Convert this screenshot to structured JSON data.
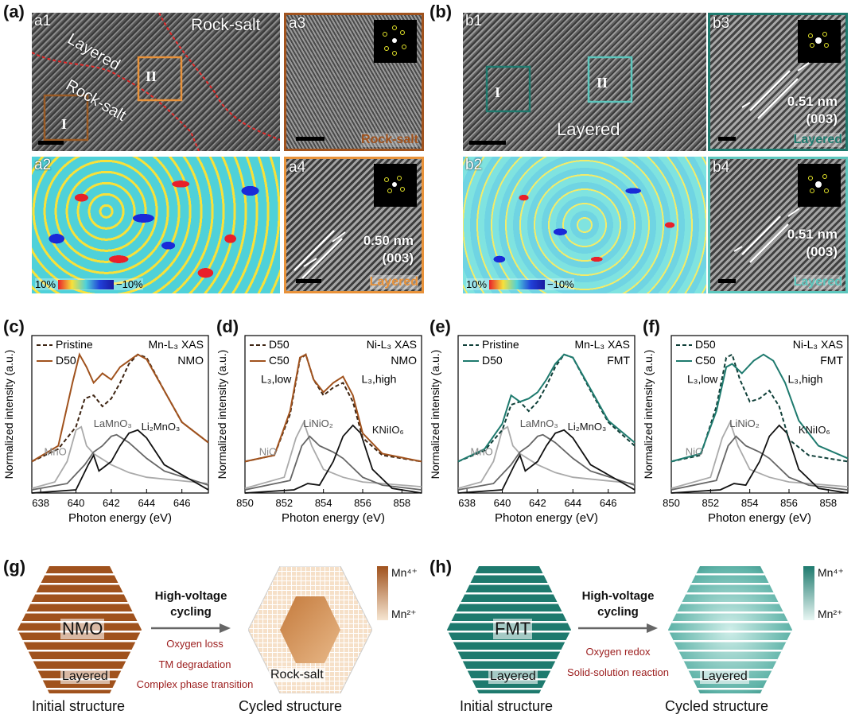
{
  "panels": {
    "a": {
      "label": "(a)"
    },
    "b": {
      "label": "(b)"
    },
    "c": {
      "label": "(c)"
    },
    "d": {
      "label": "(d)"
    },
    "e": {
      "label": "(e)"
    },
    "f": {
      "label": "(f)"
    },
    "g": {
      "label": "(g)"
    },
    "h": {
      "label": "(h)"
    }
  },
  "tem": {
    "a1": {
      "label": "a1",
      "layered": "Layered",
      "rocksalt_top": "Rock-salt",
      "rocksalt_mid": "Rock-salt",
      "roi1": "I",
      "roi2": "II"
    },
    "a2": {
      "label": "a2",
      "cbar_left": "10%",
      "cbar_right": "−10%"
    },
    "a3": {
      "label": "a3",
      "phase": "Rock-salt",
      "phase_color": "#a0521d"
    },
    "a4": {
      "label": "a4",
      "dspace": "0.50 nm",
      "plane": "(003)",
      "phase": "Layered",
      "phase_color": "#e8923a"
    },
    "b1": {
      "label": "b1",
      "layered": "Layered",
      "roi1": "I",
      "roi2": "II"
    },
    "b2": {
      "label": "b2",
      "cbar_left": "10%",
      "cbar_right": "−10%"
    },
    "b3": {
      "label": "b3",
      "dspace": "0.51 nm",
      "plane": "(003)",
      "phase": "Layered",
      "phase_color": "#1e7a6e"
    },
    "b4": {
      "label": "b4",
      "dspace": "0.51 nm",
      "plane": "(003)",
      "phase": "Layered",
      "phase_color": "#5cc6bd"
    }
  },
  "chart_data": [
    {
      "type": "line",
      "id": "c",
      "xlabel": "Photon energy (eV)",
      "ylabel": "Normalized intensity (a.u.)",
      "xlim": [
        637.5,
        647.5
      ],
      "xticks": [
        638,
        640,
        642,
        644,
        646
      ],
      "annotation_lines": [
        "Mn-L₃ XAS",
        "NMO"
      ],
      "series": [
        {
          "name": "Pristine",
          "color": "#3d2412",
          "dash": true,
          "x": [
            637.5,
            639,
            640,
            640.5,
            641,
            641.5,
            642,
            642.5,
            643,
            643.5,
            644,
            645,
            646,
            647.5
          ],
          "y": [
            0.2,
            0.28,
            0.42,
            0.6,
            0.62,
            0.55,
            0.6,
            0.7,
            0.82,
            0.88,
            0.86,
            0.65,
            0.45,
            0.32
          ]
        },
        {
          "name": "D50",
          "color": "#a0521d",
          "dash": false,
          "x": [
            637.5,
            639,
            639.8,
            640.2,
            640.6,
            641,
            641.5,
            642,
            642.5,
            643,
            643.5,
            644,
            645,
            646,
            647.5
          ],
          "y": [
            0.2,
            0.3,
            0.7,
            0.88,
            0.8,
            0.7,
            0.76,
            0.72,
            0.8,
            0.84,
            0.88,
            0.85,
            0.65,
            0.45,
            0.32
          ]
        }
      ],
      "references": [
        {
          "name": "MnO",
          "color": "#aaaaaa",
          "x": [
            637.5,
            638.8,
            639.5,
            640,
            640.3,
            640.6,
            641,
            642,
            643,
            644,
            647.5
          ],
          "y": [
            0.03,
            0.07,
            0.2,
            0.4,
            0.42,
            0.3,
            0.25,
            0.18,
            0.13,
            0.1,
            0.06
          ]
        },
        {
          "name": "LaMnO₃",
          "color": "#666666",
          "x": [
            637.5,
            639.5,
            640.5,
            641,
            641.5,
            642,
            642.3,
            643,
            644,
            645,
            647.5
          ],
          "y": [
            0.02,
            0.06,
            0.18,
            0.26,
            0.3,
            0.36,
            0.37,
            0.32,
            0.22,
            0.14,
            0.05
          ]
        },
        {
          "name": "Li₂MnO₃",
          "color": "#111111",
          "x": [
            637.5,
            640,
            640.7,
            641,
            641.3,
            642,
            642.5,
            643,
            643.5,
            644,
            645,
            647.5
          ],
          "y": [
            0.0,
            0.02,
            0.18,
            0.24,
            0.14,
            0.2,
            0.3,
            0.38,
            0.4,
            0.35,
            0.18,
            0.02
          ]
        }
      ]
    },
    {
      "type": "line",
      "id": "d",
      "xlabel": "Photon energy (eV)",
      "ylabel": "Normalized intensity (a.u.)",
      "xlim": [
        850,
        859
      ],
      "xticks": [
        850,
        852,
        854,
        856,
        858
      ],
      "annotation_lines": [
        "Ni-L₃ XAS",
        "NMO"
      ],
      "series": [
        {
          "name": "D50",
          "color": "#3d2412",
          "dash": true,
          "x": [
            850,
            851.5,
            852.3,
            852.8,
            853.1,
            853.5,
            854,
            854.5,
            855,
            855.5,
            856,
            857,
            859
          ],
          "y": [
            0.2,
            0.24,
            0.5,
            0.85,
            0.88,
            0.72,
            0.62,
            0.67,
            0.7,
            0.58,
            0.35,
            0.24,
            0.2
          ]
        },
        {
          "name": "C50",
          "color": "#a0521d",
          "dash": false,
          "x": [
            850,
            851.5,
            852.3,
            852.8,
            853.1,
            853.5,
            854,
            854.5,
            855,
            855.5,
            856,
            857,
            859
          ],
          "y": [
            0.2,
            0.24,
            0.52,
            0.86,
            0.88,
            0.72,
            0.64,
            0.7,
            0.74,
            0.62,
            0.38,
            0.25,
            0.2
          ]
        }
      ],
      "references": [
        {
          "name": "NiO",
          "color": "#aaaaaa",
          "x": [
            850,
            852,
            852.6,
            853,
            853.4,
            854,
            855,
            856,
            859
          ],
          "y": [
            0.03,
            0.1,
            0.35,
            0.45,
            0.3,
            0.15,
            0.1,
            0.07,
            0.04
          ]
        },
        {
          "name": "LiNiO₂",
          "color": "#666666",
          "x": [
            850,
            852.3,
            852.9,
            853.3,
            853.8,
            854.5,
            855,
            856,
            857,
            859
          ],
          "y": [
            0.02,
            0.08,
            0.3,
            0.36,
            0.3,
            0.26,
            0.22,
            0.1,
            0.05,
            0.02
          ]
        },
        {
          "name": "KNiIO₆",
          "color": "#111111",
          "x": [
            850,
            852.5,
            853.2,
            853.8,
            854.5,
            855,
            855.5,
            855.9,
            856.5,
            857.5,
            859
          ],
          "y": [
            0.0,
            0.02,
            0.06,
            0.05,
            0.2,
            0.36,
            0.43,
            0.38,
            0.15,
            0.03,
            0.0
          ]
        }
      ],
      "edge_labels": [
        "L₃,low",
        "L₃,high"
      ]
    },
    {
      "type": "line",
      "id": "e",
      "xlabel": "Photon energy (eV)",
      "ylabel": "Normalized intensity (a.u.)",
      "xlim": [
        637.5,
        647.5
      ],
      "xticks": [
        638,
        640,
        642,
        644,
        646
      ],
      "annotation_lines": [
        "Mn-L₃ XAS",
        "FMT"
      ],
      "series": [
        {
          "name": "Pristine",
          "color": "#0f3f38",
          "dash": true,
          "x": [
            637.5,
            639,
            640,
            640.5,
            641,
            641.5,
            642,
            642.5,
            643,
            643.5,
            644,
            645,
            646,
            647.5
          ],
          "y": [
            0.2,
            0.27,
            0.4,
            0.56,
            0.58,
            0.52,
            0.58,
            0.68,
            0.8,
            0.88,
            0.86,
            0.65,
            0.45,
            0.3
          ]
        },
        {
          "name": "D50",
          "color": "#1e7a6e",
          "dash": false,
          "x": [
            637.5,
            639,
            640,
            640.5,
            641,
            641.5,
            642,
            642.5,
            643,
            643.5,
            644,
            645,
            646,
            647.5
          ],
          "y": [
            0.2,
            0.28,
            0.44,
            0.62,
            0.58,
            0.6,
            0.64,
            0.72,
            0.82,
            0.88,
            0.86,
            0.66,
            0.46,
            0.32
          ]
        }
      ],
      "references": [
        {
          "name": "MnO",
          "color": "#aaaaaa",
          "x": [
            637.5,
            638.8,
            639.5,
            640,
            640.3,
            640.6,
            641,
            642,
            643,
            644,
            647.5
          ],
          "y": [
            0.03,
            0.07,
            0.2,
            0.4,
            0.42,
            0.3,
            0.25,
            0.18,
            0.13,
            0.1,
            0.06
          ]
        },
        {
          "name": "LaMnO₃",
          "color": "#666666",
          "x": [
            637.5,
            639.5,
            640.5,
            641,
            641.5,
            642,
            642.3,
            643,
            644,
            645,
            647.5
          ],
          "y": [
            0.02,
            0.06,
            0.18,
            0.26,
            0.3,
            0.36,
            0.37,
            0.32,
            0.22,
            0.14,
            0.05
          ]
        },
        {
          "name": "Li₂MnO₃",
          "color": "#111111",
          "x": [
            637.5,
            640,
            640.7,
            641,
            641.3,
            642,
            642.5,
            643,
            643.5,
            644,
            645,
            647.5
          ],
          "y": [
            0.0,
            0.02,
            0.18,
            0.24,
            0.14,
            0.2,
            0.3,
            0.38,
            0.4,
            0.35,
            0.18,
            0.02
          ]
        }
      ]
    },
    {
      "type": "line",
      "id": "f",
      "xlabel": "Photon energy (eV)",
      "ylabel": "Normalized intensity (a.u.)",
      "xlim": [
        850,
        859
      ],
      "xticks": [
        850,
        852,
        854,
        856,
        858
      ],
      "annotation_lines": [
        "Ni-L₃ XAS",
        "FMT"
      ],
      "series": [
        {
          "name": "D50",
          "color": "#0f3f38",
          "dash": true,
          "x": [
            850,
            851.5,
            852.3,
            852.8,
            853.1,
            853.5,
            854,
            854.5,
            855,
            855.5,
            856,
            857,
            859
          ],
          "y": [
            0.2,
            0.24,
            0.55,
            0.86,
            0.88,
            0.72,
            0.58,
            0.6,
            0.65,
            0.55,
            0.34,
            0.24,
            0.2
          ]
        },
        {
          "name": "C50",
          "color": "#1e7a6e",
          "dash": false,
          "x": [
            850,
            851.5,
            852.3,
            852.8,
            853.1,
            853.6,
            854.2,
            854.7,
            855.2,
            855.8,
            856.5,
            857.5,
            859
          ],
          "y": [
            0.2,
            0.25,
            0.52,
            0.8,
            0.82,
            0.76,
            0.84,
            0.88,
            0.84,
            0.7,
            0.46,
            0.3,
            0.22
          ]
        }
      ],
      "references": [
        {
          "name": "NiO",
          "color": "#aaaaaa",
          "x": [
            850,
            852,
            852.6,
            853,
            853.4,
            854,
            855,
            856,
            859
          ],
          "y": [
            0.03,
            0.1,
            0.35,
            0.45,
            0.3,
            0.15,
            0.1,
            0.07,
            0.04
          ]
        },
        {
          "name": "LiNiO₂",
          "color": "#666666",
          "x": [
            850,
            852.3,
            852.9,
            853.3,
            853.8,
            854.5,
            855,
            856,
            857,
            859
          ],
          "y": [
            0.02,
            0.08,
            0.3,
            0.36,
            0.3,
            0.26,
            0.22,
            0.1,
            0.05,
            0.02
          ]
        },
        {
          "name": "KNiIO₆",
          "color": "#111111",
          "x": [
            850,
            852.5,
            853.2,
            853.8,
            854.5,
            855,
            855.5,
            855.9,
            856.5,
            857.5,
            859
          ],
          "y": [
            0.0,
            0.02,
            0.06,
            0.05,
            0.2,
            0.36,
            0.43,
            0.38,
            0.15,
            0.03,
            0.0
          ]
        }
      ],
      "edge_labels": [
        "L₃,low",
        "L₃,high"
      ]
    }
  ],
  "schematic": {
    "g": {
      "initial_name": "NMO",
      "initial_phase": "Layered",
      "initial_caption": "Initial structure",
      "arrow_top": "High-voltage",
      "arrow_bottom": "cycling",
      "effects": [
        "Oxygen loss",
        "TM degradation",
        "Complex phase transition"
      ],
      "cycled_phase": "Rock-salt",
      "cycled_caption": "Cycled structure",
      "scale_high": "Mn⁴⁺",
      "scale_low": "Mn²⁺",
      "color_dark": "#a0521d",
      "color_light": "#f6e6d2"
    },
    "h": {
      "initial_name": "FMT",
      "initial_phase": "Layered",
      "initial_caption": "Initial structure",
      "arrow_top": "High-voltage",
      "arrow_bottom": "cycling",
      "effects": [
        "Oxygen redox",
        "Solid-solution reaction"
      ],
      "cycled_phase": "Layered",
      "cycled_caption": "Cycled structure",
      "scale_high": "Mn⁴⁺",
      "scale_low": "Mn²⁺",
      "color_dark": "#1e7a6e",
      "color_light": "#dff3f0"
    }
  }
}
